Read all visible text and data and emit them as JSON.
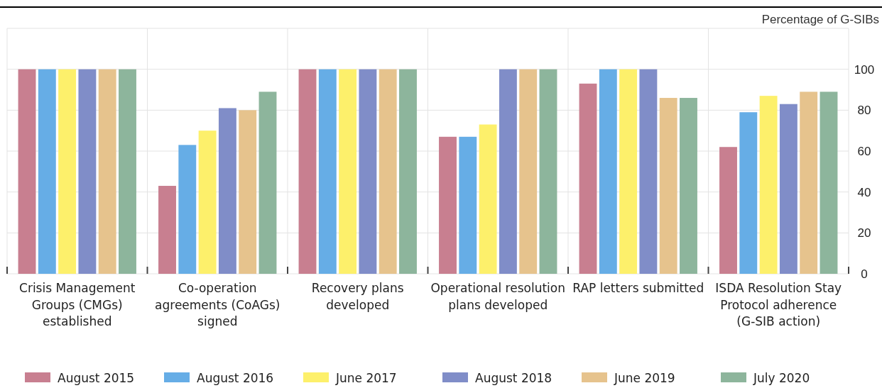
{
  "chart_data": {
    "type": "bar",
    "ylabel": "Percentage of G-SIBs",
    "categories": [
      "Crisis Management Groups (CMGs) established",
      "Co-operation agreements (CoAGs) signed",
      "Recovery plans developed",
      "Operational resolution plans developed",
      "RAP letters submitted",
      "ISDA Resolution Stay Protocol adherence (G-SIB action)"
    ],
    "series": [
      {
        "name": "August 2015",
        "color": "#c87f90",
        "values": [
          100,
          43,
          100,
          67,
          93,
          62
        ]
      },
      {
        "name": "August 2016",
        "color": "#66ade6",
        "values": [
          100,
          63,
          100,
          67,
          100,
          79
        ]
      },
      {
        "name": "June 2017",
        "color": "#fdf06b",
        "values": [
          100,
          70,
          100,
          73,
          100,
          87
        ]
      },
      {
        "name": "August 2018",
        "color": "#808dc8",
        "values": [
          100,
          81,
          100,
          100,
          100,
          83
        ]
      },
      {
        "name": "June 2019",
        "color": "#e6c38d",
        "values": [
          100,
          80,
          100,
          100,
          86,
          89
        ]
      },
      {
        "name": "July 2020",
        "color": "#8db59c",
        "values": [
          100,
          89,
          100,
          100,
          86,
          89
        ]
      }
    ],
    "ylim": [
      0,
      120
    ],
    "yticks": [
      0,
      20,
      40,
      60,
      80,
      100
    ],
    "grid": true,
    "legend": "bottom"
  }
}
